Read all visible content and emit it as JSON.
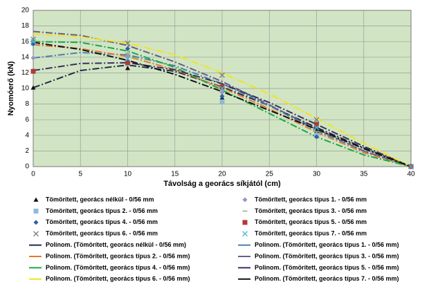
{
  "chart_data": {
    "type": "scatter",
    "x_label": "Távolság a georács síkjától (cm)",
    "y_label": "Nyomóerő (kN)",
    "xlim": [
      0,
      40
    ],
    "ylim": [
      0,
      20
    ],
    "xticks": [
      0,
      5,
      10,
      15,
      20,
      25,
      30,
      35,
      40
    ],
    "yticks": [
      0,
      2,
      4,
      6,
      8,
      10,
      12,
      14,
      16,
      18,
      20
    ],
    "grid": true,
    "background": "#d1e5c4",
    "series": [
      {
        "name": "Tömörített, georács nélkül - 0/56 mm",
        "marker": "triangle",
        "color": "#111111",
        "x": [
          0,
          10,
          20,
          30,
          40
        ],
        "values": [
          10.1,
          12.6,
          8.8,
          4.6,
          0
        ]
      },
      {
        "name": "Tömörített, georács típus 1. - 0/56 mm",
        "marker": "diamond",
        "color": "#9a93c4",
        "x": [
          0,
          10,
          20,
          30,
          40
        ],
        "values": [
          13.9,
          14.2,
          9.5,
          4.2,
          0
        ]
      },
      {
        "name": "Tömörített, georács típus 2. - 0/56 mm",
        "marker": "square",
        "color": "#8fb8da",
        "x": [
          0,
          10,
          20,
          30,
          40
        ],
        "values": [
          15.8,
          13.2,
          8.3,
          4.0,
          0
        ]
      },
      {
        "name": "Tömörített, georács típus 3. - 0/56 mm",
        "marker": "dash",
        "color": "#8ab07a",
        "x": [
          0,
          10,
          20,
          30,
          40
        ],
        "values": [
          16.0,
          14.5,
          9.8,
          4.5,
          0
        ]
      },
      {
        "name": "Tömörített, georács típus 4. - 0/56 mm",
        "marker": "diamond",
        "color": "#2e5fa3",
        "x": [
          0,
          10,
          20,
          30,
          40
        ],
        "values": [
          15.7,
          15.1,
          9.0,
          3.8,
          0
        ]
      },
      {
        "name": "Tömörített, georács típus 5. - 0/56 mm",
        "marker": "square",
        "color": "#b03a3a",
        "x": [
          0,
          10,
          20,
          30,
          40
        ],
        "values": [
          12.2,
          13.3,
          10.2,
          5.4,
          0
        ]
      },
      {
        "name": "Tömörített, georács típus 6. - 0/56 mm",
        "marker": "x",
        "color": "#777777",
        "x": [
          0,
          10,
          20,
          30,
          40
        ],
        "values": [
          16.3,
          15.8,
          11.7,
          6.0,
          0
        ]
      },
      {
        "name": "Tömörített, georács típus 7. - 0/56 mm",
        "marker": "x",
        "color": "#3bb3d6",
        "x": [
          0,
          10,
          20,
          30,
          40
        ],
        "values": [
          16.0,
          13.8,
          10.0,
          5.0,
          0
        ]
      }
    ],
    "trendlines": [
      {
        "name": "Polinom. (Tömörített, georács nélkül - 0/56 mm)",
        "color": "#1f2a4a",
        "x": [
          0,
          5,
          10,
          15,
          20,
          25,
          30,
          35,
          40
        ],
        "values": [
          10.1,
          12.3,
          13.0,
          12.2,
          10.2,
          7.8,
          5.0,
          2.4,
          0
        ]
      },
      {
        "name": "Polinom. (Tömörített, georács típus 1. - 0/56 mm)",
        "color": "#4a7fb0",
        "x": [
          0,
          5,
          10,
          15,
          20,
          25,
          30,
          35,
          40
        ],
        "values": [
          13.9,
          14.6,
          14.3,
          12.9,
          10.6,
          7.8,
          4.6,
          2.0,
          0
        ]
      },
      {
        "name": "Polinom. (Tömörített, georács típus 2. - 0/56 mm)",
        "color": "#e8772e",
        "x": [
          0,
          5,
          10,
          15,
          20,
          25,
          30,
          35,
          40
        ],
        "values": [
          15.6,
          15.1,
          14.1,
          12.4,
          10.1,
          7.4,
          4.4,
          1.8,
          0
        ]
      },
      {
        "name": "Polinom. (Tömörített, georács típus 3. - 0/56 mm)",
        "color": "#6a5a8a",
        "x": [
          0,
          5,
          10,
          15,
          20,
          25,
          30,
          35,
          40
        ],
        "values": [
          17.3,
          16.8,
          15.5,
          13.4,
          10.9,
          7.9,
          4.8,
          2.0,
          0
        ]
      },
      {
        "name": "Polinom. (Tömörített, georács típus 4. - 0/56 mm)",
        "color": "#1aa84a",
        "x": [
          0,
          5,
          10,
          15,
          20,
          25,
          30,
          35,
          40
        ],
        "values": [
          16.0,
          15.9,
          14.8,
          12.7,
          9.8,
          6.8,
          3.8,
          1.5,
          0
        ]
      },
      {
        "name": "Polinom. (Tömörített, georács típus 5. - 0/56 mm)",
        "color": "#3d2e5c",
        "x": [
          0,
          5,
          10,
          15,
          20,
          25,
          30,
          35,
          40
        ],
        "values": [
          12.3,
          13.2,
          13.3,
          12.4,
          10.6,
          8.2,
          5.4,
          2.6,
          0
        ]
      },
      {
        "name": "Polinom. (Tömörített, georács típus 6. - 0/56 mm)",
        "color": "#f2e41a",
        "x": [
          0,
          5,
          10,
          15,
          20,
          25,
          30,
          35,
          40
        ],
        "values": [
          17.0,
          16.6,
          15.8,
          14.3,
          12.0,
          9.3,
          6.2,
          3.0,
          0
        ]
      },
      {
        "name": "Polinom. (Tömörített, georács típus 7. - 0/56 mm)",
        "color": "#111111",
        "x": [
          0,
          5,
          10,
          15,
          20,
          25,
          30,
          35,
          40
        ],
        "values": [
          15.9,
          15.0,
          13.6,
          11.8,
          9.6,
          7.2,
          4.8,
          2.3,
          0
        ]
      }
    ]
  }
}
